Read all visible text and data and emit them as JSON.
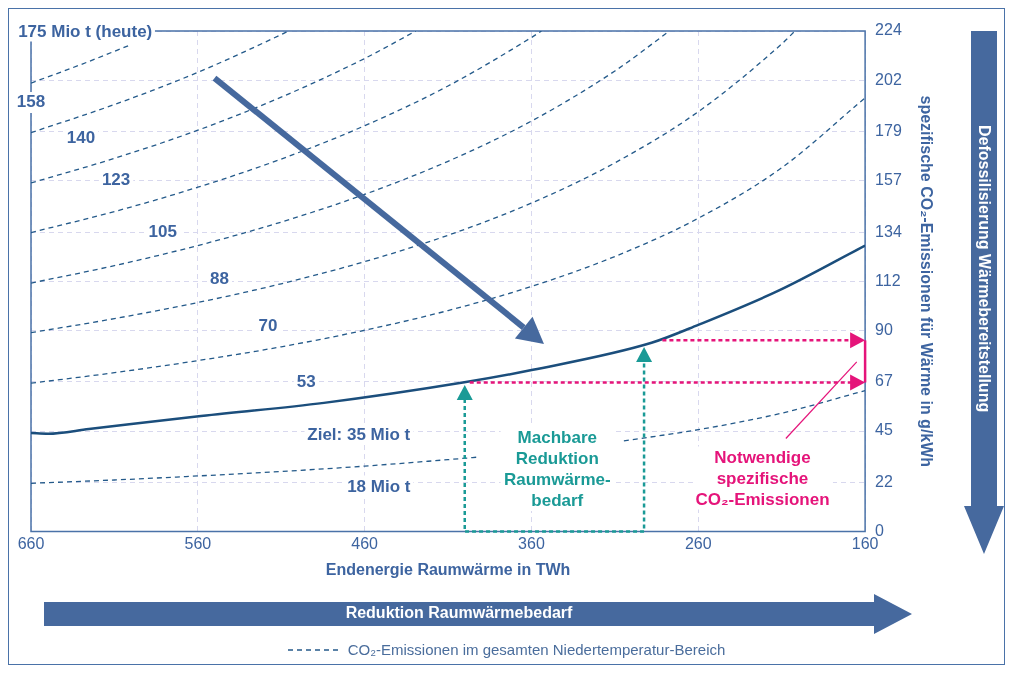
{
  "chart_data": {
    "type": "line",
    "xlabel": "Endenergie Raumwärme in TWh",
    "ylabel": "spezifische CO₂-Emissionen für Wärme in g/kWh",
    "xlim": [
      660,
      160
    ],
    "xticks": [
      660,
      560,
      460,
      360,
      260,
      160
    ],
    "ylim": [
      0,
      224
    ],
    "yticks": [
      0,
      22,
      45,
      67,
      90,
      112,
      134,
      157,
      179,
      202,
      224
    ],
    "grid": true,
    "legend": "bottom",
    "annotations": [
      "175 Mio t (heute)",
      {
        "text": "158",
        "x": 660,
        "y": 192
      },
      {
        "text": "140",
        "x": 630,
        "y": 176
      },
      {
        "text": "123",
        "x": 609,
        "y": 157
      },
      {
        "text": "105",
        "x": 581,
        "y": 134
      },
      {
        "text": "88",
        "x": 547,
        "y": 113
      },
      {
        "text": "70",
        "x": 518,
        "y": 92
      },
      {
        "text": "53",
        "x": 495,
        "y": 67
      },
      "Ziel: 35 Mio t",
      "18 Mio t",
      "Machbare\nReduktion\nRaumwärme-\nbedarf",
      "Notwendige\nspezifische\nCO₂-Emissionen",
      "Reduktion Raumwärmebedarf",
      "Defossilisierung Wärmebereitstellung"
    ],
    "series": [
      {
        "name": "CO₂-Emissionen im gesamten Niedertemperatur-Bereich",
        "color": "#245a8a",
        "line_style": "dashed",
        "x": [
          660,
          630,
          601.7
        ],
        "values": [
          200.7,
          209,
          217.4
        ]
      },
      {
        "color": "#245a8a",
        "line_style": "dashed",
        "x": [
          660,
          610,
          560,
          510,
          505.6
        ],
        "values": [
          178.5,
          191.1,
          205.5,
          222.4,
          224
        ]
      },
      {
        "color": "#245a8a",
        "line_style": "dashed",
        "x": [
          660,
          610,
          560,
          510,
          460,
          429.3
        ],
        "values": [
          156,
          167,
          179.6,
          194.4,
          211.7,
          224
        ]
      },
      {
        "color": "#245a8a",
        "line_style": "dashed",
        "x": [
          660,
          610,
          560,
          510,
          460,
          410,
          360,
          354
        ],
        "values": [
          133.8,
          143.2,
          154.1,
          166.7,
          181.6,
          199.4,
          221.1,
          224
        ]
      },
      {
        "color": "#245a8a",
        "line_style": "dashed",
        "x": [
          660,
          610,
          560,
          510,
          460,
          410,
          360,
          310,
          277.3
        ],
        "values": [
          111.2,
          119,
          128,
          138.5,
          150.9,
          165.7,
          183.7,
          206.1,
          224
        ]
      },
      {
        "color": "#245a8a",
        "line_style": "dashed",
        "x": [
          660,
          610,
          560,
          510,
          460,
          410,
          360,
          310,
          260,
          210,
          202
        ],
        "values": [
          89,
          95.3,
          102.5,
          110.9,
          120.8,
          132.6,
          147,
          165,
          187.9,
          218.2,
          224
        ]
      },
      {
        "color": "#245a8a",
        "line_style": "dashed",
        "x": [
          660,
          610,
          560,
          510,
          460,
          410,
          360,
          310,
          260,
          210,
          160
        ],
        "values": [
          66.4,
          71.1,
          76.5,
          82.7,
          90.1,
          98.9,
          109.7,
          123.1,
          140.2,
          162.8,
          194.1
        ]
      },
      {
        "color": "#245a8a",
        "line_style": "dashed",
        "x": [
          660,
          610,
          560,
          510,
          460,
          410,
          391,
          350,
          304.6,
          260,
          210,
          160
        ],
        "values": [
          21.6,
          23.1,
          24.9,
          26.9,
          29.3,
          32.2,
          33.4,
          null,
          40.6,
          45.6,
          53,
          63.1
        ]
      },
      {
        "color": "#1b4e7c",
        "line_style": "solid",
        "x": [
          660,
          649.8,
          625.3,
          560.7,
          484.4,
          400.2,
          359.1,
          288,
          260,
          211.9,
          160
        ],
        "values": [
          44.1,
          43.8,
          45.9,
          51.5,
          57.6,
          66.8,
          72.4,
          84.5,
          92.5,
          107.8,
          128
        ]
      }
    ]
  }
}
